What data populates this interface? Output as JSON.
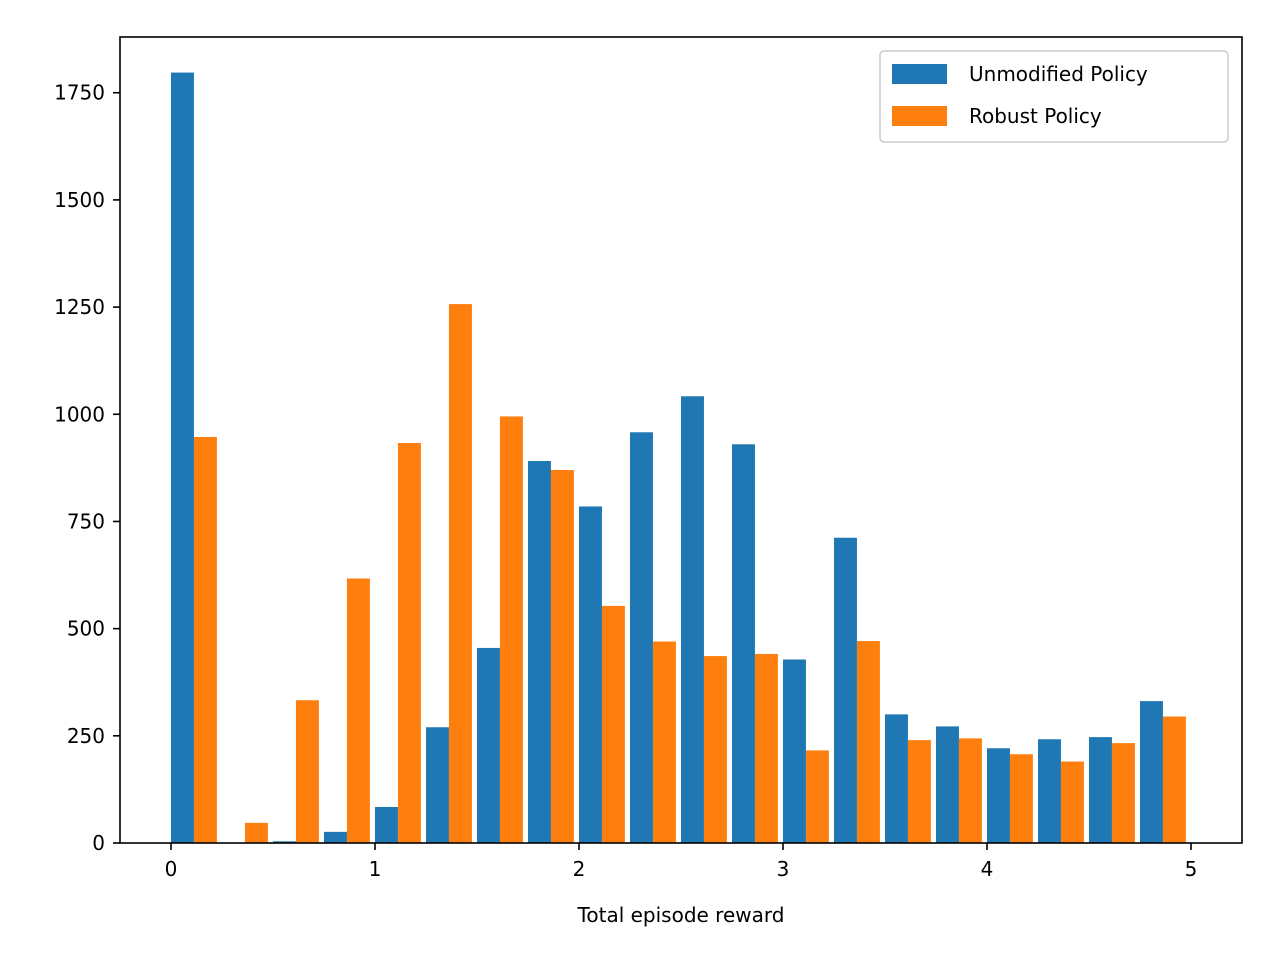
{
  "chart_data": {
    "type": "bar",
    "title": "",
    "xlabel": "Total episode reward",
    "ylabel": "",
    "xlim": [
      -0.25,
      5.25
    ],
    "ylim": [
      0,
      1880
    ],
    "bins": [
      [
        0.0,
        0.25
      ],
      [
        0.25,
        0.5
      ],
      [
        0.5,
        0.75
      ],
      [
        0.75,
        1.0
      ],
      [
        1.0,
        1.25
      ],
      [
        1.25,
        1.5
      ],
      [
        1.5,
        1.75
      ],
      [
        1.75,
        2.0
      ],
      [
        2.0,
        2.25
      ],
      [
        2.25,
        2.5
      ],
      [
        2.5,
        2.75
      ],
      [
        2.75,
        3.0
      ],
      [
        3.0,
        3.25
      ],
      [
        3.25,
        3.5
      ],
      [
        3.5,
        3.75
      ],
      [
        3.75,
        4.0
      ],
      [
        4.0,
        4.25
      ],
      [
        4.25,
        4.5
      ],
      [
        4.5,
        4.75
      ],
      [
        4.75,
        5.0
      ]
    ],
    "series": [
      {
        "name": "Unmodified Policy",
        "color": "#1f77b4",
        "values": [
          1797,
          0,
          4,
          26,
          84,
          270,
          455,
          891,
          785,
          958,
          1042,
          930,
          428,
          712,
          300,
          272,
          221,
          242,
          247,
          331
        ]
      },
      {
        "name": "Robust Policy",
        "color": "#ff7f0e",
        "values": [
          947,
          47,
          333,
          617,
          933,
          1257,
          995,
          870,
          553,
          470,
          436,
          441,
          216,
          471,
          240,
          244,
          207,
          190,
          233,
          295
        ]
      }
    ],
    "xticks": [
      {
        "value": 0,
        "label": "0"
      },
      {
        "value": 1,
        "label": "1"
      },
      {
        "value": 2,
        "label": "2"
      },
      {
        "value": 3,
        "label": "3"
      },
      {
        "value": 4,
        "label": "4"
      },
      {
        "value": 5,
        "label": "5"
      }
    ],
    "yticks": [
      {
        "value": 0,
        "label": "0"
      },
      {
        "value": 250,
        "label": "250"
      },
      {
        "value": 500,
        "label": "500"
      },
      {
        "value": 750,
        "label": "750"
      },
      {
        "value": 1000,
        "label": "1000"
      },
      {
        "value": 1250,
        "label": "1250"
      },
      {
        "value": 1500,
        "label": "1500"
      },
      {
        "value": 1750,
        "label": "1750"
      }
    ],
    "grid": false,
    "legend_position": "top-right"
  }
}
